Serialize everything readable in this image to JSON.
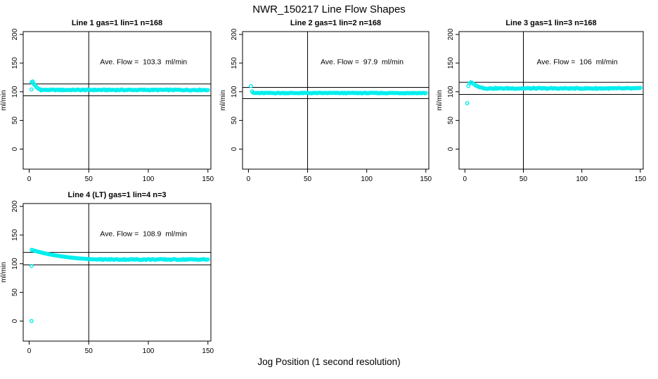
{
  "figure": {
    "title": "NWR_150217  Line Flow Shapes",
    "xlabel": "Jog Position (1 second resolution)"
  },
  "chart_data": {
    "type": "scatter",
    "title": "NWR_150217  Line Flow Shapes",
    "xlabel": "Jog Position (1 second resolution)",
    "ylabel": "ml/min",
    "x_ticks": [
      0,
      50,
      100,
      150
    ],
    "y_ticks": [
      0,
      50,
      100,
      150,
      200
    ],
    "xlim": [
      -5,
      152.5
    ],
    "ylim": [
      -35,
      205
    ],
    "grid": false,
    "point_color": "#00eeee",
    "axis_color": "#000000",
    "marker": "open-circle",
    "panels": [
      {
        "title": "Line 1 gas=1 lin=1 n=168",
        "ave_flow": 103.3,
        "ave_flow_label": "Ave. Flow =  103.3  ml/min",
        "n": 168,
        "vline_x": 50,
        "ref_lines_y": [
          113.6,
          93.0
        ],
        "outliers": [
          [
            2,
            104
          ]
        ],
        "trend": [
          [
            2,
            117
          ],
          [
            3,
            118
          ],
          [
            3,
            115.5
          ],
          [
            4,
            113.5
          ],
          [
            5,
            111
          ],
          [
            6,
            108.5
          ],
          [
            7,
            106.5
          ],
          [
            8,
            105.2
          ],
          [
            9,
            104.3
          ],
          [
            10,
            103.7
          ]
        ],
        "band": {
          "x_start": 10,
          "x_end": 150,
          "step": 1,
          "value": 103.2,
          "noise": 0.8
        }
      },
      {
        "title": "Line 2 gas=1 lin=2 n=168",
        "ave_flow": 97.9,
        "ave_flow_label": "Ave. Flow =  97.9  ml/min",
        "n": 168,
        "vline_x": 50,
        "ref_lines_y": [
          107.7,
          88.1
        ],
        "outliers": [
          [
            2,
            110
          ]
        ],
        "trend": [
          [
            3,
            100.5
          ],
          [
            4,
            98.6
          ]
        ],
        "band": {
          "x_start": 4,
          "x_end": 150,
          "step": 1,
          "value": 97.8,
          "noise": 0.55
        }
      },
      {
        "title": "Line 3 gas=1 lin=3 n=168",
        "ave_flow": 106,
        "ave_flow_label": "Ave. Flow =  106  ml/min",
        "n": 168,
        "vline_x": 50,
        "ref_lines_y": [
          116.6,
          95.4
        ],
        "outliers": [
          [
            2,
            80
          ]
        ],
        "trend": [
          [
            3,
            110
          ],
          [
            4,
            114.5
          ],
          [
            5,
            116.5
          ],
          [
            6,
            116
          ],
          [
            7,
            114.5
          ],
          [
            8,
            113
          ],
          [
            9,
            111.5
          ],
          [
            10,
            110.2
          ],
          [
            11,
            109.2
          ],
          [
            12,
            108.4
          ],
          [
            13,
            107.8
          ],
          [
            14,
            107.3
          ],
          [
            15,
            106.9
          ],
          [
            16,
            106.5
          ]
        ],
        "band": {
          "x_start": 16,
          "x_end": 150,
          "step": 1,
          "value": 105.9,
          "noise": 0.85
        }
      },
      {
        "title": "Line 4 (LT) gas=1 lin=4 n=3",
        "ave_flow": 108.9,
        "ave_flow_label": "Ave. Flow =  108.9  ml/min",
        "n": 3,
        "vline_x": 50,
        "ref_lines_y": [
          119.8,
          98.0
        ],
        "outliers": [
          [
            2,
            0
          ],
          [
            2,
            96
          ]
        ],
        "trend": [
          [
            2,
            124.3
          ],
          [
            4,
            123
          ],
          [
            6,
            121.8
          ],
          [
            8,
            120.7
          ],
          [
            10,
            119.6
          ],
          [
            12,
            118.6
          ],
          [
            14,
            117.7
          ],
          [
            16,
            116.8
          ],
          [
            18,
            116
          ],
          [
            20,
            115.2
          ],
          [
            22,
            114.5
          ],
          [
            24,
            113.8
          ],
          [
            26,
            113.2
          ],
          [
            28,
            112.6
          ],
          [
            30,
            112
          ],
          [
            32,
            111.5
          ],
          [
            34,
            111
          ],
          [
            36,
            110.5
          ],
          [
            38,
            110.1
          ],
          [
            40,
            109.7
          ],
          [
            42,
            109.3
          ],
          [
            44,
            109
          ],
          [
            46,
            108.7
          ],
          [
            48,
            108.4
          ],
          [
            50,
            108.1
          ],
          [
            52,
            107.9
          ],
          [
            54,
            107.7
          ],
          [
            56,
            107.5
          ],
          [
            58,
            107.4
          ]
        ],
        "band": {
          "x_start": 59,
          "x_end": 150,
          "step": 1,
          "value": 107.4,
          "noise": 0.85
        }
      }
    ]
  }
}
